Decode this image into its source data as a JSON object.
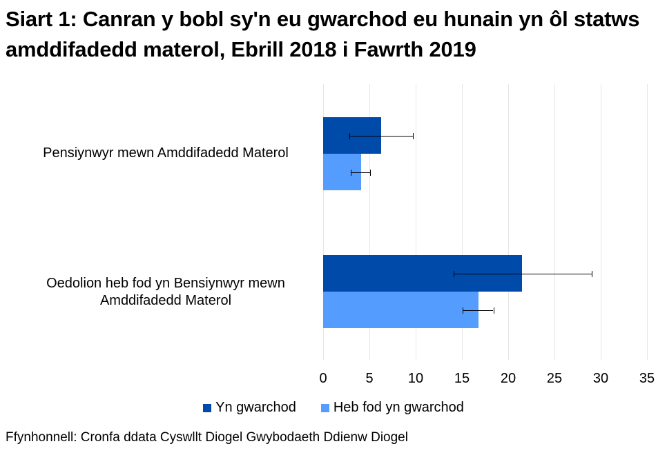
{
  "title": "Siart 1: Canran y bobl sy'n eu gwarchod eu hunain yn ôl statws amddifadedd materol, Ebrill 2018 i Fawrth 2019",
  "source": "Ffynhonnell: Cronfa ddata Cyswllt Diogel Gwybodaeth Ddienw Diogel",
  "colors": {
    "series_1": "#004BAA",
    "series_2": "#559CFF",
    "grid": "#e6e6e6"
  },
  "legend": [
    {
      "label": "Yn gwarchod",
      "color": "#004BAA"
    },
    {
      "label": "Heb fod yn gwarchod",
      "color": "#559CFF"
    }
  ],
  "categories_display": {
    "cat1": "Pensiynwyr mewn Amddifadedd Materol",
    "cat2_line1": "Oedolion heb fod yn Bensiynwyr mewn",
    "cat2_line2": "Amddifadedd Materol"
  },
  "x_ticks": [
    "0",
    "5",
    "10",
    "15",
    "20",
    "25",
    "30",
    "35"
  ],
  "chart_data": {
    "type": "bar",
    "orientation": "horizontal",
    "title": "Siart 1: Canran y bobl sy'n eu gwarchod eu hunain yn ôl statws amddifadedd materol, Ebrill 2018 i Fawrth 2019",
    "categories": [
      "Pensiynwyr mewn Amddifadedd Materol",
      "Oedolion heb fod yn Bensiynwyr mewn Amddifadedd Materol"
    ],
    "series": [
      {
        "name": "Yn gwarchod",
        "color": "#004BAA",
        "values": [
          6.3,
          21.5
        ],
        "error_low": [
          2.8,
          14.1
        ],
        "error_high": [
          9.7,
          29.0
        ]
      },
      {
        "name": "Heb fod yn gwarchod",
        "color": "#559CFF",
        "values": [
          4.1,
          16.8
        ],
        "error_low": [
          3.0,
          15.1
        ],
        "error_high": [
          5.1,
          18.4
        ]
      }
    ],
    "xlabel": "",
    "ylabel": "",
    "xlim": [
      0,
      35
    ],
    "x_ticks": [
      0,
      5,
      10,
      15,
      20,
      25,
      30,
      35
    ],
    "grid": true,
    "legend_position": "bottom",
    "source": "Ffynhonnell: Cronfa ddata Cyswllt Diogel Gwybodaeth Ddienw Diogel"
  }
}
